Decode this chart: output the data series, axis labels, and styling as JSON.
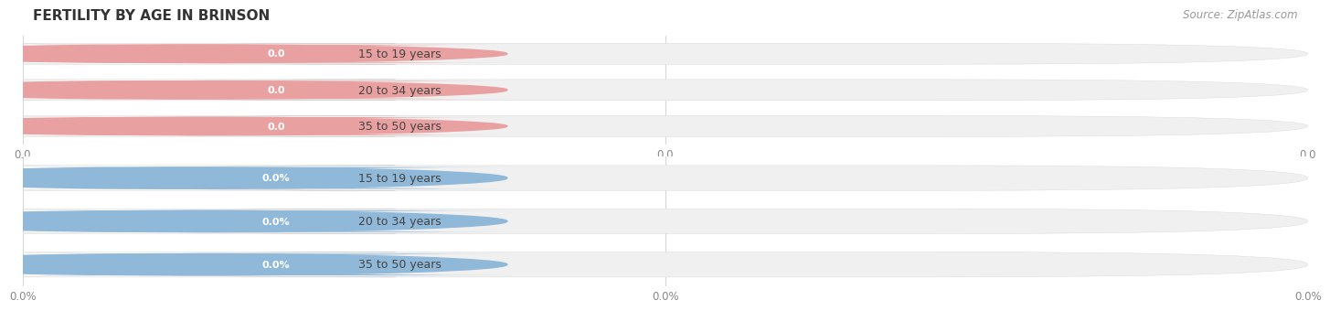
{
  "title": "FERTILITY BY AGE IN BRINSON",
  "source": "Source: ZipAtlas.com",
  "top_section": {
    "categories": [
      "15 to 19 years",
      "20 to 34 years",
      "35 to 50 years"
    ],
    "values": [
      0.0,
      0.0,
      0.0
    ],
    "bar_accent_color": "#e8a0a0",
    "value_badge_color": "#e8a0a0",
    "value_format": "0.0",
    "x_tick_labels": [
      "0.0",
      "0.0",
      "0.0"
    ]
  },
  "bottom_section": {
    "categories": [
      "15 to 19 years",
      "20 to 34 years",
      "35 to 50 years"
    ],
    "values": [
      0.0,
      0.0,
      0.0
    ],
    "bar_accent_color": "#90b8d8",
    "value_badge_color": "#90b8d8",
    "value_format": "0.0%",
    "x_tick_labels": [
      "0.0%",
      "0.0%",
      "0.0%"
    ]
  },
  "fig_width": 14.06,
  "fig_height": 3.3,
  "title_fontsize": 11,
  "source_fontsize": 8.5,
  "bar_label_fontsize": 9,
  "bar_value_fontsize": 8,
  "tick_fontsize": 8.5
}
